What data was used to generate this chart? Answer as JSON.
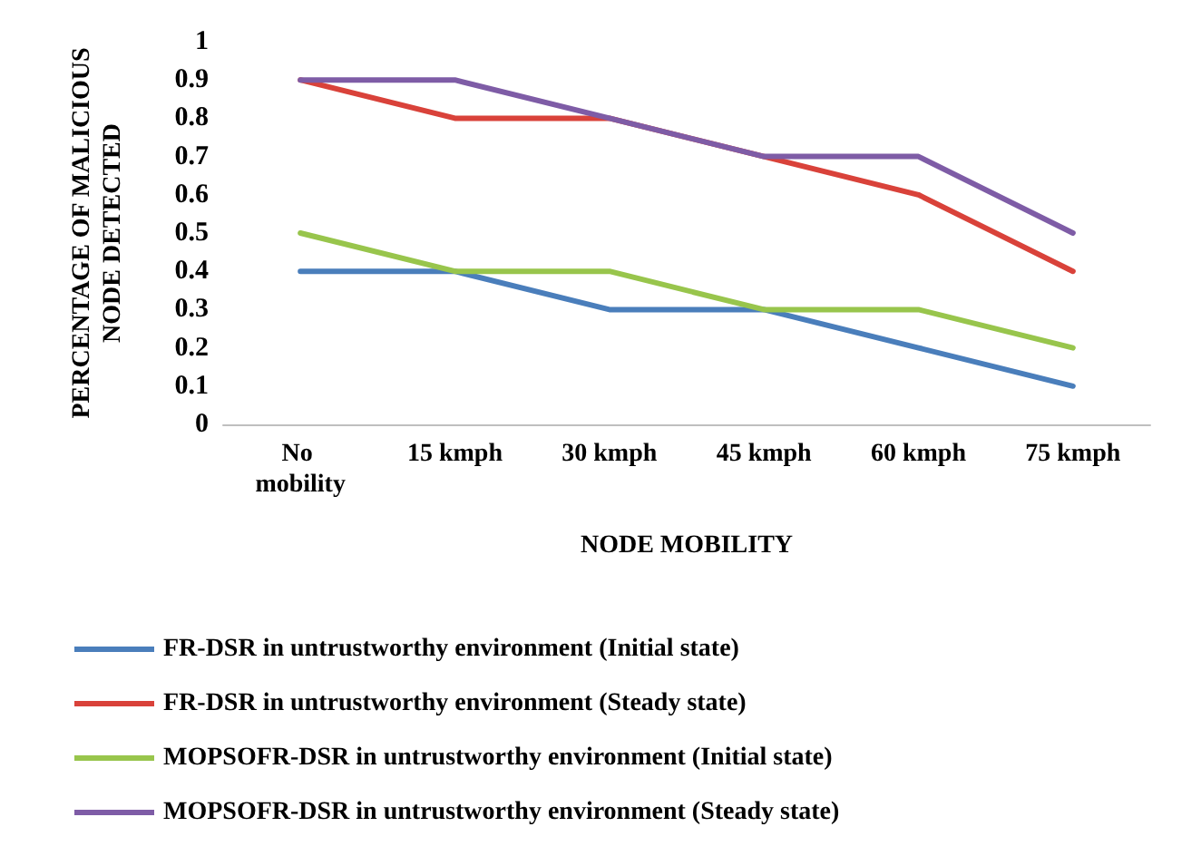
{
  "chart_data": {
    "type": "line",
    "xlabel": "NODE MOBILITY",
    "ylabel": "PERCENTAGE OF MALICIOUS NODE DETECTED",
    "categories": [
      "No mobility",
      "15 kmph",
      "30 kmph",
      "45 kmph",
      "60 kmph",
      "75 kmph"
    ],
    "series": [
      {
        "name": "FR-DSR in untrustworthy environment (Initial state)",
        "color": "#4a7ebb",
        "values": [
          0.4,
          0.4,
          0.3,
          0.3,
          0.2,
          0.1
        ]
      },
      {
        "name": "FR-DSR in untrustworthy environment (Steady state)",
        "color": "#d9423a",
        "values": [
          0.9,
          0.8,
          0.8,
          0.7,
          0.6,
          0.4
        ]
      },
      {
        "name": "MOPSOFR-DSR in untrustworthy environment (Initial state)",
        "color": "#98c54c",
        "values": [
          0.5,
          0.4,
          0.4,
          0.3,
          0.3,
          0.2
        ]
      },
      {
        "name": "MOPSOFR-DSR in untrustworthy environment (Steady state)",
        "color": "#7e5ca6",
        "values": [
          0.9,
          0.9,
          0.8,
          0.7,
          0.7,
          0.5
        ]
      }
    ],
    "ylim": [
      0,
      1
    ],
    "yticks": [
      0,
      0.1,
      0.2,
      0.3,
      0.4,
      0.5,
      0.6,
      0.7,
      0.8,
      0.9,
      1
    ],
    "grid": false,
    "legend": "bottom",
    "marker": "none",
    "line_style": "solid"
  }
}
